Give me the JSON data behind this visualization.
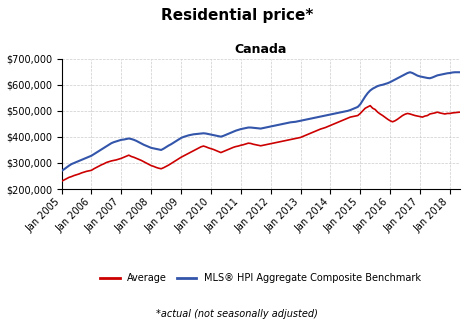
{
  "title": "Residential price*",
  "subtitle": "Canada",
  "footnote": "*actual (not seasonally adjusted)",
  "ylim": [
    200000,
    700000
  ],
  "yticks": [
    200000,
    300000,
    400000,
    500000,
    600000,
    700000
  ],
  "xtick_labels": [
    "Jan 2005",
    "Jan 2006",
    "Jan 2007",
    "Jan 2008",
    "Jan 2009",
    "Jan 2010",
    "Jan 2011",
    "Jan 2012",
    "Jan 2013",
    "Jan 2014",
    "Jan 2015",
    "Jan 2016",
    "Jan 2017",
    "Jan 2018"
  ],
  "avg_color": "#cc0000",
  "benchmark_color": "#3355aa",
  "legend_avg": "Average",
  "legend_benchmark": "MLS® HPI Aggregate Composite Benchmark",
  "avg_values": [
    230000,
    235000,
    240000,
    245000,
    248000,
    252000,
    255000,
    258000,
    262000,
    265000,
    268000,
    270000,
    272000,
    278000,
    283000,
    288000,
    293000,
    297000,
    302000,
    305000,
    308000,
    310000,
    312000,
    315000,
    318000,
    322000,
    326000,
    330000,
    325000,
    322000,
    318000,
    314000,
    310000,
    305000,
    300000,
    295000,
    290000,
    287000,
    283000,
    280000,
    278000,
    282000,
    287000,
    292000,
    298000,
    304000,
    310000,
    316000,
    322000,
    327000,
    332000,
    337000,
    342000,
    347000,
    352000,
    357000,
    362000,
    365000,
    362000,
    358000,
    355000,
    352000,
    348000,
    344000,
    340000,
    344000,
    348000,
    352000,
    356000,
    360000,
    363000,
    365000,
    368000,
    370000,
    373000,
    376000,
    375000,
    372000,
    370000,
    368000,
    366000,
    368000,
    370000,
    372000,
    374000,
    376000,
    378000,
    380000,
    382000,
    384000,
    386000,
    388000,
    390000,
    392000,
    394000,
    396000,
    398000,
    402000,
    406000,
    410000,
    414000,
    418000,
    422000,
    426000,
    430000,
    433000,
    436000,
    440000,
    444000,
    448000,
    452000,
    456000,
    460000,
    464000,
    468000,
    472000,
    476000,
    478000,
    480000,
    482000,
    490000,
    500000,
    510000,
    515000,
    520000,
    510000,
    505000,
    495000,
    488000,
    482000,
    475000,
    468000,
    462000,
    458000,
    462000,
    468000,
    475000,
    482000,
    487000,
    490000,
    488000,
    485000,
    482000,
    480000,
    478000,
    476000,
    480000,
    482000,
    488000,
    490000,
    492000,
    495000,
    492000,
    490000,
    488000,
    490000,
    490000,
    492000,
    493000,
    494000,
    495000
  ],
  "benchmark_values": [
    270000,
    276000,
    283000,
    290000,
    296000,
    300000,
    304000,
    308000,
    312000,
    316000,
    320000,
    324000,
    328000,
    334000,
    340000,
    346000,
    352000,
    358000,
    364000,
    370000,
    376000,
    380000,
    383000,
    386000,
    389000,
    390000,
    392000,
    394000,
    392000,
    389000,
    385000,
    380000,
    375000,
    370000,
    366000,
    362000,
    358000,
    356000,
    354000,
    352000,
    350000,
    355000,
    361000,
    367000,
    372000,
    378000,
    384000,
    390000,
    396000,
    400000,
    403000,
    406000,
    408000,
    410000,
    411000,
    412000,
    413000,
    414000,
    413000,
    411000,
    409000,
    407000,
    405000,
    403000,
    401000,
    404000,
    408000,
    412000,
    416000,
    420000,
    424000,
    427000,
    430000,
    432000,
    434000,
    436000,
    436000,
    435000,
    434000,
    433000,
    432000,
    434000,
    436000,
    438000,
    440000,
    442000,
    444000,
    446000,
    448000,
    450000,
    452000,
    454000,
    456000,
    457000,
    458000,
    460000,
    462000,
    464000,
    466000,
    468000,
    470000,
    472000,
    474000,
    476000,
    478000,
    480000,
    482000,
    484000,
    486000,
    488000,
    490000,
    492000,
    494000,
    496000,
    498000,
    500000,
    503000,
    507000,
    511000,
    515000,
    525000,
    540000,
    555000,
    568000,
    578000,
    585000,
    590000,
    595000,
    598000,
    600000,
    603000,
    606000,
    610000,
    615000,
    620000,
    625000,
    630000,
    635000,
    640000,
    645000,
    648000,
    645000,
    640000,
    635000,
    632000,
    630000,
    628000,
    626000,
    625000,
    628000,
    632000,
    636000,
    638000,
    640000,
    642000,
    644000,
    645000,
    647000,
    648000,
    648000,
    648000
  ]
}
